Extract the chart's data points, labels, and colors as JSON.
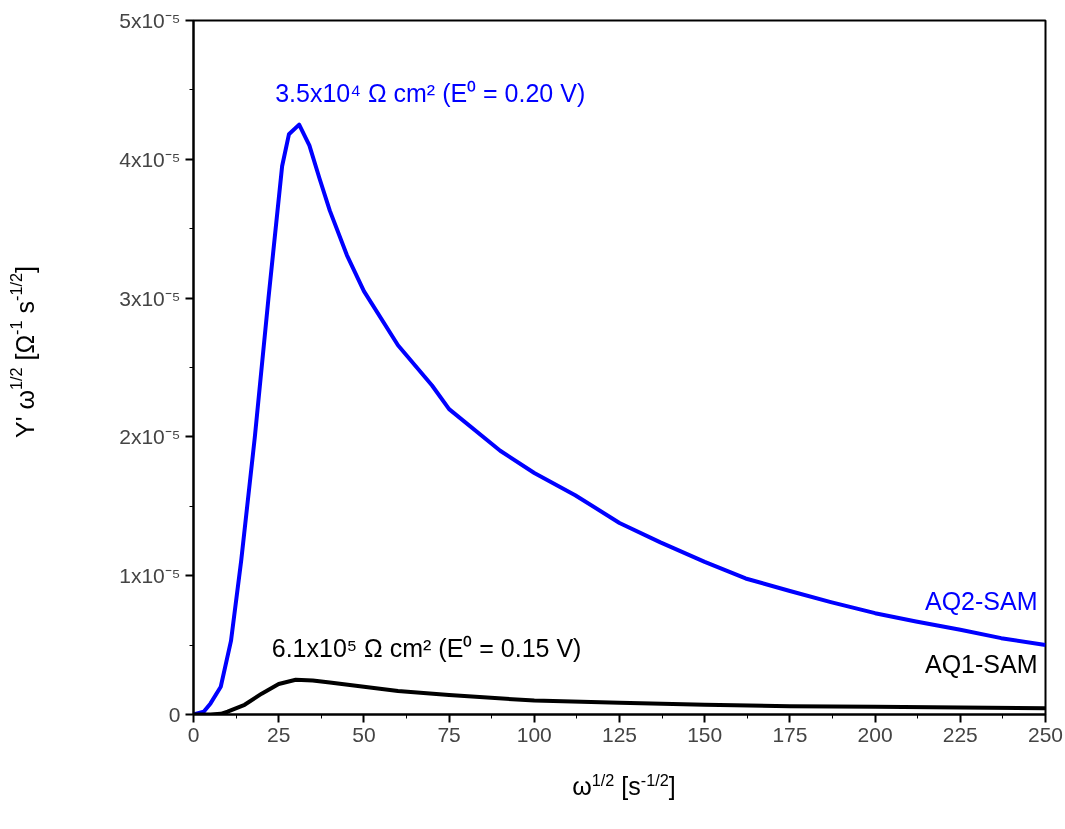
{
  "chart_data": {
    "type": "line",
    "xlabel": "ω$^{1/2}$ [s$^{-1/2}$]",
    "ylabel": "Y' ω$^{1/2}$  [Ω$^{-1}$ s$^{-1/2}$]",
    "xlim": [
      0,
      250
    ],
    "xticks": [
      0,
      25,
      50,
      75,
      100,
      125,
      150,
      175,
      200,
      225,
      250
    ],
    "ylim": [
      0,
      5e-05
    ],
    "yticks": [
      0,
      {
        "value": 1e-05,
        "label": "1x10⁻⁵"
      },
      {
        "value": 2e-05,
        "label": "2x10⁻⁵"
      },
      {
        "value": 3e-05,
        "label": "3x10⁻⁵"
      },
      {
        "value": 4e-05,
        "label": "4x10⁻⁵"
      },
      {
        "value": 5e-05,
        "label": "5x10⁻⁵"
      }
    ],
    "grid": false,
    "legend": false,
    "marker": "none",
    "line_style": "solid",
    "annotations": [
      "3.5x10⁴ Ω cm² (E⁰ = 0.20 V)",
      "6.1x10⁵ Ω cm² (E⁰ = 0.15 V)"
    ],
    "series": [
      {
        "name": "AQ2-SAM",
        "color": "#0000ff",
        "x": [
          0,
          3,
          5,
          8,
          11,
          14,
          18,
          22,
          26,
          28,
          31,
          34,
          37,
          40,
          45,
          50,
          60,
          70,
          75,
          90,
          100,
          112,
          125,
          137,
          150,
          162,
          175,
          187,
          200,
          212,
          225,
          237,
          250
        ],
        "values": [
          0,
          2e-07,
          8e-07,
          2e-06,
          5.3e-06,
          1.11e-05,
          2e-05,
          3e-05,
          3.95e-05,
          4.18e-05,
          4.25e-05,
          4.1e-05,
          3.86e-05,
          3.63e-05,
          3.31e-05,
          3.05e-05,
          2.66e-05,
          2.37e-05,
          2.2e-05,
          1.9e-05,
          1.74e-05,
          1.58e-05,
          1.38e-05,
          1.24e-05,
          1.1e-05,
          9.8e-06,
          8.9e-06,
          8.1e-06,
          7.3e-06,
          6.7e-06,
          6.1e-06,
          5.5e-06,
          5e-06
        ]
      },
      {
        "name": "AQ1-SAM",
        "color": "#000000",
        "x": [
          0,
          5,
          8,
          10,
          15,
          20,
          25,
          30,
          35,
          40,
          50,
          60,
          75,
          100,
          125,
          150,
          175,
          200,
          225,
          250
        ],
        "values": [
          0,
          0,
          5e-08,
          2e-07,
          7e-07,
          1.5e-06,
          2.2e-06,
          2.5e-06,
          2.45e-06,
          2.3e-06,
          2e-06,
          1.7e-06,
          1.4e-06,
          1e-06,
          8.5e-07,
          7e-07,
          6e-07,
          5.5e-07,
          5e-07,
          4.5e-07
        ]
      }
    ]
  }
}
